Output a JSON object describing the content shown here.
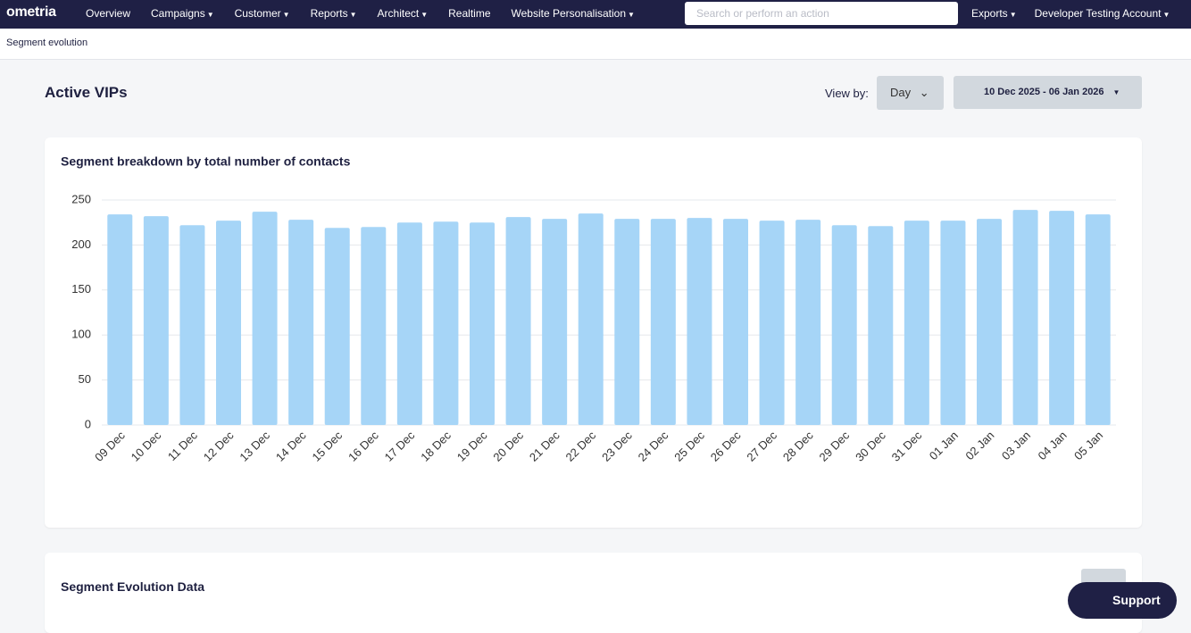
{
  "nav": {
    "logo": "ometria",
    "items": [
      {
        "label": "Overview",
        "menu": false
      },
      {
        "label": "Campaigns",
        "menu": true
      },
      {
        "label": "Customer",
        "menu": true
      },
      {
        "label": "Reports",
        "menu": true
      },
      {
        "label": "Architect",
        "menu": true
      },
      {
        "label": "Realtime",
        "menu": false
      },
      {
        "label": "Website Personalisation",
        "menu": true
      }
    ],
    "search_placeholder": "Search or perform an action",
    "right_items": [
      {
        "label": "Exports",
        "menu": true
      },
      {
        "label": "Developer Testing Account",
        "menu": true
      }
    ]
  },
  "breadcrumb": "Segment evolution",
  "header": {
    "title": "Active VIPs",
    "view_by_label": "View by:",
    "view_by_value": "Day",
    "date_range": "10 Dec 2025 - 06 Jan 2026"
  },
  "chart_data": {
    "type": "bar",
    "title": "Segment breakdown by total number of contacts",
    "color": "#a6d5f7",
    "grid": true,
    "categories": [
      "09 Dec",
      "10 Dec",
      "11 Dec",
      "12 Dec",
      "13 Dec",
      "14 Dec",
      "15 Dec",
      "16 Dec",
      "17 Dec",
      "18 Dec",
      "19 Dec",
      "20 Dec",
      "21 Dec",
      "22 Dec",
      "23 Dec",
      "24 Dec",
      "25 Dec",
      "26 Dec",
      "27 Dec",
      "28 Dec",
      "29 Dec",
      "30 Dec",
      "31 Dec",
      "01 Jan",
      "02 Jan",
      "03 Jan",
      "04 Jan",
      "05 Jan"
    ],
    "values": [
      234,
      232,
      222,
      227,
      237,
      228,
      219,
      220,
      225,
      226,
      225,
      231,
      229,
      235,
      229,
      229,
      230,
      229,
      227,
      228,
      222,
      221,
      227,
      227,
      229,
      239,
      238,
      234
    ],
    "ylim": [
      0,
      250
    ],
    "yticks": [
      0,
      50,
      100,
      150,
      200,
      250
    ]
  },
  "table_card": {
    "title": "Segment Evolution Data"
  },
  "support": "Support"
}
